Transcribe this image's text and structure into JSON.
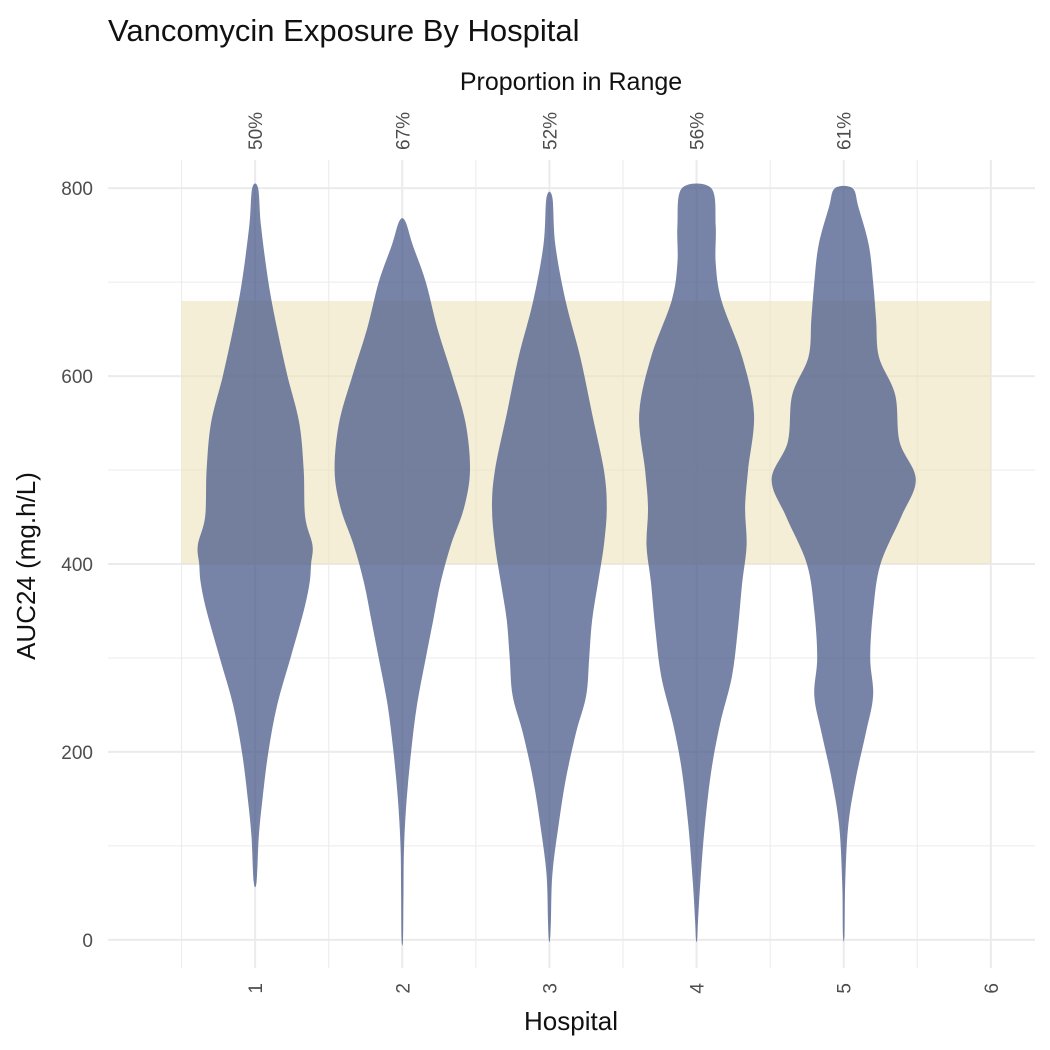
{
  "chart_data": {
    "type": "violin",
    "title": "Vancomycin Exposure By Hospital",
    "xlabel": "Hospital",
    "ylabel": "AUC24 (mg.h/L)",
    "top_axis_title": "Proportion in Range",
    "x_ticks": [
      "1",
      "2",
      "3",
      "4",
      "5",
      "6"
    ],
    "x_range": [
      0,
      6.3
    ],
    "y_ticks": [
      "0",
      "200",
      "400",
      "600",
      "800"
    ],
    "y_range": [
      -30,
      830
    ],
    "grid": true,
    "target_range": [
      400,
      680
    ],
    "colors": {
      "violin": "#4a5a8a",
      "target_band": "#ede3bd",
      "grid": "#ebebeb"
    },
    "violins": [
      {
        "hospital": "1",
        "proportion_in_range": "50%",
        "profile": [
          [
            800,
            0.02
          ],
          [
            760,
            0.04
          ],
          [
            700,
            0.09
          ],
          [
            650,
            0.15
          ],
          [
            600,
            0.22
          ],
          [
            550,
            0.3
          ],
          [
            500,
            0.33
          ],
          [
            450,
            0.34
          ],
          [
            420,
            0.39
          ],
          [
            400,
            0.38
          ],
          [
            380,
            0.37
          ],
          [
            350,
            0.33
          ],
          [
            300,
            0.24
          ],
          [
            250,
            0.15
          ],
          [
            200,
            0.09
          ],
          [
            150,
            0.05
          ],
          [
            110,
            0.025
          ],
          [
            62,
            0.01
          ]
        ]
      },
      {
        "hospital": "2",
        "proportion_in_range": "67%",
        "profile": [
          [
            765,
            0.02
          ],
          [
            740,
            0.07
          ],
          [
            700,
            0.16
          ],
          [
            650,
            0.24
          ],
          [
            600,
            0.34
          ],
          [
            550,
            0.43
          ],
          [
            500,
            0.46
          ],
          [
            460,
            0.42
          ],
          [
            420,
            0.33
          ],
          [
            380,
            0.26
          ],
          [
            340,
            0.21
          ],
          [
            300,
            0.16
          ],
          [
            250,
            0.1
          ],
          [
            200,
            0.06
          ],
          [
            150,
            0.03
          ],
          [
            100,
            0.012
          ],
          [
            50,
            0.008
          ],
          [
            0,
            0.005
          ]
        ]
      },
      {
        "hospital": "3",
        "proportion_in_range": "52%",
        "profile": [
          [
            790,
            0.02
          ],
          [
            740,
            0.04
          ],
          [
            680,
            0.11
          ],
          [
            620,
            0.21
          ],
          [
            560,
            0.29
          ],
          [
            500,
            0.37
          ],
          [
            460,
            0.39
          ],
          [
            420,
            0.37
          ],
          [
            380,
            0.33
          ],
          [
            340,
            0.29
          ],
          [
            300,
            0.27
          ],
          [
            260,
            0.25
          ],
          [
            220,
            0.18
          ],
          [
            170,
            0.11
          ],
          [
            120,
            0.06
          ],
          [
            70,
            0.02
          ],
          [
            20,
            0.01
          ],
          [
            0,
            0.004
          ]
        ]
      },
      {
        "hospital": "4",
        "proportion_in_range": "56%",
        "profile": [
          [
            800,
            0.1
          ],
          [
            760,
            0.13
          ],
          [
            720,
            0.13
          ],
          [
            680,
            0.17
          ],
          [
            620,
            0.31
          ],
          [
            560,
            0.39
          ],
          [
            500,
            0.35
          ],
          [
            460,
            0.33
          ],
          [
            420,
            0.34
          ],
          [
            380,
            0.31
          ],
          [
            330,
            0.28
          ],
          [
            280,
            0.24
          ],
          [
            230,
            0.16
          ],
          [
            180,
            0.1
          ],
          [
            120,
            0.055
          ],
          [
            60,
            0.025
          ],
          [
            20,
            0.01
          ],
          [
            0,
            0.004
          ]
        ]
      },
      {
        "hospital": "5",
        "proportion_in_range": "61%",
        "profile": [
          [
            800,
            0.06
          ],
          [
            780,
            0.1
          ],
          [
            740,
            0.17
          ],
          [
            700,
            0.2
          ],
          [
            660,
            0.22
          ],
          [
            620,
            0.24
          ],
          [
            580,
            0.35
          ],
          [
            530,
            0.38
          ],
          [
            490,
            0.49
          ],
          [
            450,
            0.39
          ],
          [
            400,
            0.25
          ],
          [
            350,
            0.2
          ],
          [
            300,
            0.18
          ],
          [
            260,
            0.2
          ],
          [
            220,
            0.15
          ],
          [
            170,
            0.08
          ],
          [
            120,
            0.03
          ],
          [
            60,
            0.01
          ],
          [
            5,
            0.005
          ]
        ]
      }
    ]
  }
}
